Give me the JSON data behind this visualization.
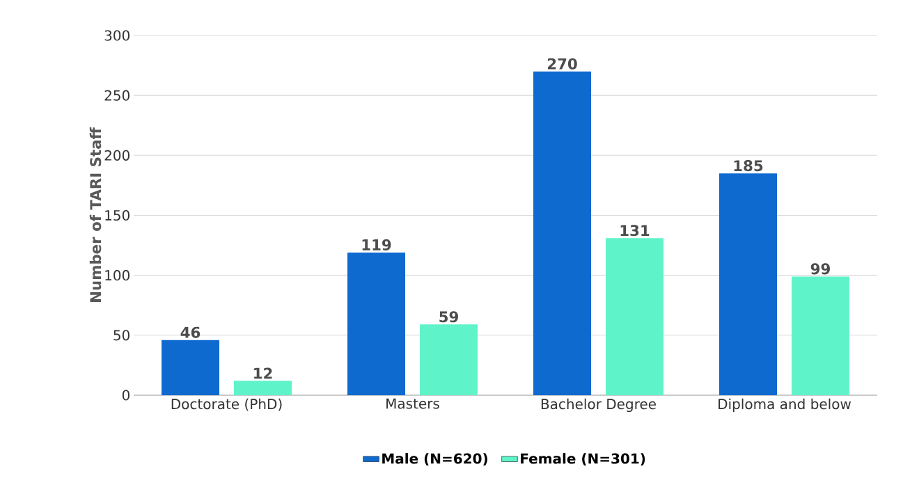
{
  "chart_data": {
    "type": "bar",
    "ylabel": "Number of TARI Staff",
    "categories": [
      "Doctorate (PhD)",
      "Masters",
      "Bachelor Degree",
      "Diploma and below"
    ],
    "series": [
      {
        "name": "Male (N=620)",
        "color": "#0f6ad0",
        "values": [
          46,
          119,
          270,
          185
        ]
      },
      {
        "name": "Female (N=301)",
        "color": "#5ff3c9",
        "values": [
          12,
          59,
          131,
          99
        ]
      }
    ],
    "ylim": [
      0,
      300
    ],
    "yticks": [
      0,
      50,
      100,
      150,
      200,
      250,
      300
    ],
    "grid": "y",
    "legend": "bottom",
    "data_labels": true
  }
}
